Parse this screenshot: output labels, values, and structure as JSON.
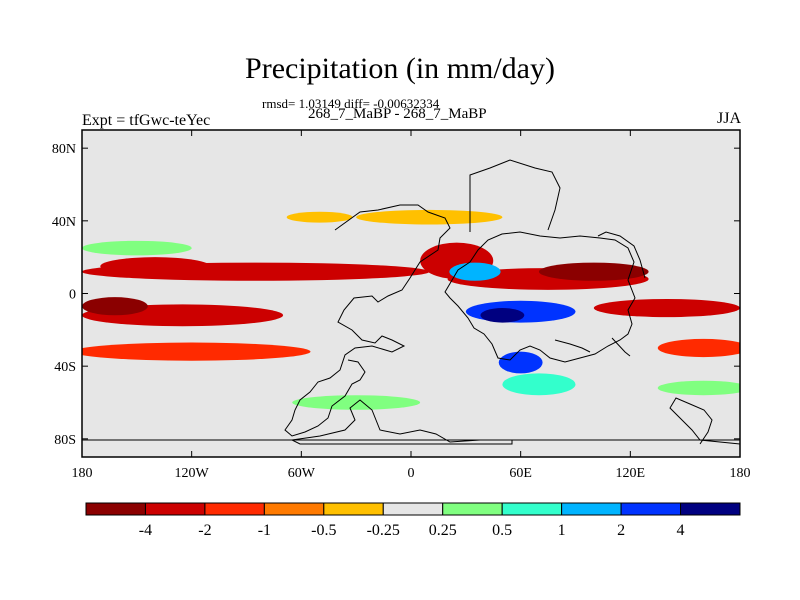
{
  "title": "Precipitation (in mm/day)",
  "stats": "rmsd= 1.03149 diff= -0.00632334",
  "subtitle": "268_7_MaBP - 268_7_MaBP",
  "left_label": "Expt = tfGwc-teYec",
  "right_label": "JJA",
  "chart_data": {
    "type": "heatmap",
    "title": "Precipitation (in mm/day)",
    "variable": "Precipitation difference",
    "units": "mm/day",
    "season": "JJA",
    "rmsd": 1.03149,
    "diff": -0.00632334,
    "xlim": [
      -180,
      180
    ],
    "ylim": [
      -90,
      90
    ],
    "x_ticks": [
      {
        "value": -180,
        "label": "180"
      },
      {
        "value": -120,
        "label": "120W"
      },
      {
        "value": -60,
        "label": "60W"
      },
      {
        "value": 0,
        "label": "0"
      },
      {
        "value": 60,
        "label": "60E"
      },
      {
        "value": 120,
        "label": "120E"
      },
      {
        "value": 180,
        "label": "180"
      }
    ],
    "y_ticks": [
      {
        "value": 80,
        "label": "80N"
      },
      {
        "value": 40,
        "label": "40N"
      },
      {
        "value": 0,
        "label": "0"
      },
      {
        "value": -40,
        "label": "40S"
      },
      {
        "value": -80,
        "label": "80S"
      }
    ],
    "colorbar": {
      "levels": [
        -4,
        -2,
        -1,
        -0.5,
        -0.25,
        0.25,
        0.5,
        1,
        2,
        4
      ],
      "labels": [
        "-4",
        "-2",
        "-1",
        "-0.5",
        "-0.25",
        "0.25",
        "0.5",
        "1",
        "2",
        "4"
      ],
      "colors": [
        "#8b0000",
        "#cc0000",
        "#ff2a00",
        "#ff7a00",
        "#ffc000",
        "#e6e6e6",
        "#80ff80",
        "#33ffcc",
        "#00b4ff",
        "#0033ff",
        "#000080"
      ]
    },
    "features": [
      {
        "lon": -85,
        "lat": 12,
        "rx": 95,
        "ry": 5,
        "value": -2.5
      },
      {
        "lon": -140,
        "lat": 15,
        "rx": 30,
        "ry": 5,
        "value": -2.5
      },
      {
        "lon": -125,
        "lat": -12,
        "rx": 55,
        "ry": 6,
        "value": -2.5
      },
      {
        "lon": -162,
        "lat": -7,
        "rx": 18,
        "ry": 5,
        "value": -4.5
      },
      {
        "lon": -120,
        "lat": -32,
        "rx": 65,
        "ry": 5,
        "value": -1.5
      },
      {
        "lon": -50,
        "lat": 42,
        "rx": 18,
        "ry": 3,
        "value": -0.4
      },
      {
        "lon": 10,
        "lat": 42,
        "rx": 40,
        "ry": 4,
        "value": -0.4
      },
      {
        "lon": 25,
        "lat": 18,
        "rx": 20,
        "ry": 10,
        "value": -2.5
      },
      {
        "lon": 75,
        "lat": 8,
        "rx": 55,
        "ry": 6,
        "value": -3.5
      },
      {
        "lon": 100,
        "lat": 12,
        "rx": 30,
        "ry": 5,
        "value": -4.5
      },
      {
        "lon": 140,
        "lat": -8,
        "rx": 40,
        "ry": 5,
        "value": -2.5
      },
      {
        "lon": 160,
        "lat": -30,
        "rx": 25,
        "ry": 5,
        "value": -1.5
      },
      {
        "lon": 35,
        "lat": 12,
        "rx": 14,
        "ry": 5,
        "value": 1.5
      },
      {
        "lon": 60,
        "lat": -10,
        "rx": 30,
        "ry": 6,
        "value": 2.5
      },
      {
        "lon": 50,
        "lat": -12,
        "rx": 12,
        "ry": 4,
        "value": 4.5
      },
      {
        "lon": 60,
        "lat": -38,
        "rx": 12,
        "ry": 6,
        "value": 2.5
      },
      {
        "lon": 70,
        "lat": -50,
        "rx": 20,
        "ry": 6,
        "value": 0.7
      },
      {
        "lon": -30,
        "lat": -60,
        "rx": 35,
        "ry": 4,
        "value": 0.35
      },
      {
        "lon": 160,
        "lat": -52,
        "rx": 25,
        "ry": 4,
        "value": 0.35
      },
      {
        "lon": -150,
        "lat": 25,
        "rx": 30,
        "ry": 4,
        "value": 0.35
      }
    ]
  }
}
